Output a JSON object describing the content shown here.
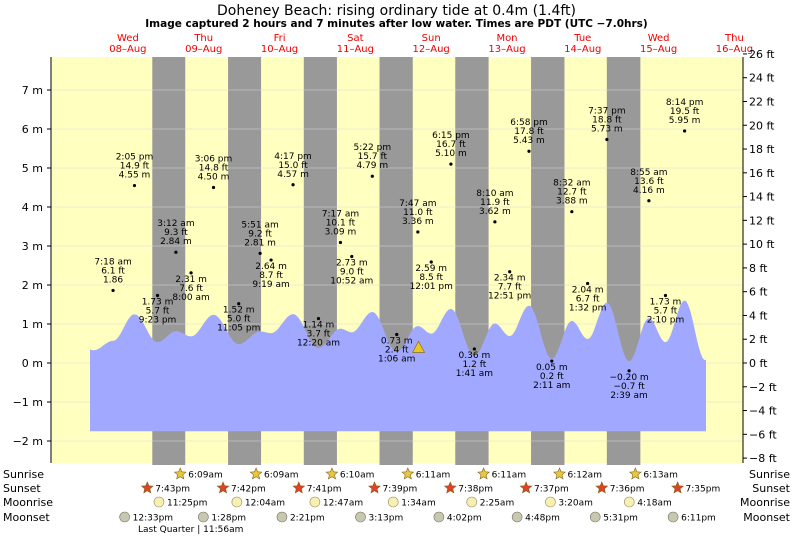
{
  "title": "Doheney Beach: rising  ordinary tide at 0.4m (1.4ft)",
  "subtitle": "Image captured 2 hours and 7 minutes after low water. Times are PDT (UTC −7.0hrs)",
  "colors": {
    "day_bg": "#ffffc0",
    "night_band": "#999999",
    "water": "#a0a8ff",
    "day_label": "#ee0000",
    "grid": "#d8d8d8",
    "current_marker": "#e8c820",
    "sun_star": "#e8c840",
    "sunset_star": "#dd4422",
    "moonrise": "#f8f0b0",
    "moonset": "#c8c8b0"
  },
  "days": [
    {
      "name": "Wed",
      "date": "08–Aug"
    },
    {
      "name": "Thu",
      "date": "09–Aug"
    },
    {
      "name": "Fri",
      "date": "10–Aug"
    },
    {
      "name": "Sat",
      "date": "11–Aug"
    },
    {
      "name": "Sun",
      "date": "12–Aug"
    },
    {
      "name": "Mon",
      "date": "13–Aug"
    },
    {
      "name": "Tue",
      "date": "14–Aug"
    },
    {
      "name": "Wed",
      "date": "15–Aug"
    },
    {
      "name": "Thu",
      "date": "16–Aug"
    }
  ],
  "chart_data": {
    "type": "area",
    "title": "Doheney Beach: rising  ordinary tide at 0.4m (1.4ft)",
    "x_range_hours": [
      -4.7,
      214.3
    ],
    "x_note": "hours after 00:00 Wed 08-Aug (PDT)",
    "series_span_hours": [
      0,
      195.0
    ],
    "ylim_m": [
      -2.3,
      7.8
    ],
    "yticks_m": [
      -2,
      -1,
      0,
      1,
      2,
      3,
      4,
      5,
      6,
      7
    ],
    "ytick_labels_m": [
      "−2 m",
      "−1 m",
      "0 m",
      "1 m",
      "2 m",
      "3 m",
      "4 m",
      "5 m",
      "6 m",
      "7 m"
    ],
    "yticks_ft": [
      -8,
      -6,
      -4,
      -2,
      0,
      2,
      4,
      6,
      8,
      10,
      12,
      14,
      16,
      18,
      20,
      22,
      24,
      26
    ],
    "ytick_labels_ft": [
      "−8 ft",
      "−6 ft",
      "−4 ft",
      "−2 ft",
      "0 ft",
      "2 ft",
      "4 ft",
      "6 ft",
      "8 ft",
      "10 ft",
      "12 ft",
      "14 ft",
      "16 ft",
      "18 ft",
      "20 ft",
      "22 ft",
      "24 ft",
      "26 ft"
    ],
    "current": {
      "hour": 104.0,
      "height_m": 0.4,
      "ft_label": "1.4ft"
    },
    "nights": [
      {
        "start": 19.72,
        "end": 30.15
      },
      {
        "start": 43.7,
        "end": 54.15
      },
      {
        "start": 67.68,
        "end": 78.17
      },
      {
        "start": 91.65,
        "end": 102.18
      },
      {
        "start": 115.63,
        "end": 126.18
      },
      {
        "start": 139.62,
        "end": 150.2
      },
      {
        "start": 163.6,
        "end": 174.22
      }
    ],
    "tides": [
      {
        "hour": 7.3,
        "m": 1.86,
        "time": "7:18 am",
        "ft": "6.1 ft",
        "mtxt": "1.86"
      },
      {
        "hour": 14.08,
        "m": 4.55,
        "time": "2:05 pm",
        "ft": "14.9 ft",
        "mtxt": "4.55 m"
      },
      {
        "hour": 21.38,
        "m": 1.73,
        "time": "9:23 pm",
        "ft": "5.7 ft",
        "mtxt": "1.73 m"
      },
      {
        "hour": 27.2,
        "m": 2.84,
        "time": "3:12 am",
        "ft": "9.3 ft",
        "mtxt": "2.84 m"
      },
      {
        "hour": 32.0,
        "m": 2.31,
        "time": "8:00 am",
        "ft": "7.6 ft",
        "mtxt": "2.31 m"
      },
      {
        "hour": 39.1,
        "m": 4.5,
        "time": "3:06 pm",
        "ft": "14.8 ft",
        "mtxt": "4.50 m"
      },
      {
        "hour": 47.08,
        "m": 1.52,
        "time": "11:05 pm",
        "ft": "5.0 ft",
        "mtxt": "1.52 m"
      },
      {
        "hour": 53.85,
        "m": 2.81,
        "time": "5:51 am",
        "ft": "9.2 ft",
        "mtxt": "2.81 m"
      },
      {
        "hour": 57.32,
        "m": 2.64,
        "time": "9:19 am",
        "ft": "8.7 ft",
        "mtxt": "2.64 m"
      },
      {
        "hour": 64.28,
        "m": 4.57,
        "time": "4:17 pm",
        "ft": "15.0 ft",
        "mtxt": "4.57 m"
      },
      {
        "hour": 72.33,
        "m": 1.14,
        "time": "12:20 am",
        "ft": "3.7 ft",
        "mtxt": "1.14 m"
      },
      {
        "hour": 79.28,
        "m": 3.09,
        "time": "7:17 am",
        "ft": "10.1 ft",
        "mtxt": "3.09 m"
      },
      {
        "hour": 82.87,
        "m": 2.73,
        "time": "10:52 am",
        "ft": "9.0 ft",
        "mtxt": "2.73 m"
      },
      {
        "hour": 89.37,
        "m": 4.79,
        "time": "5:22 pm",
        "ft": "15.7 ft",
        "mtxt": "4.79 m"
      },
      {
        "hour": 97.1,
        "m": 0.73,
        "time": "1:06 am",
        "ft": "2.4 ft",
        "mtxt": "0.73 m"
      },
      {
        "hour": 103.78,
        "m": 3.36,
        "time": "7:47 am",
        "ft": "11.0 ft",
        "mtxt": "3.36 m"
      },
      {
        "hour": 108.02,
        "m": 2.59,
        "time": "12:01 pm",
        "ft": "8.5 ft",
        "mtxt": "2.59 m"
      },
      {
        "hour": 114.25,
        "m": 5.1,
        "time": "6:15 pm",
        "ft": "16.7 ft",
        "mtxt": "5.10 m"
      },
      {
        "hour": 121.68,
        "m": 0.36,
        "time": "1:41 am",
        "ft": "1.2 ft",
        "mtxt": "0.36 m"
      },
      {
        "hour": 128.17,
        "m": 3.62,
        "time": "8:10 am",
        "ft": "11.9 ft",
        "mtxt": "3.62 m"
      },
      {
        "hour": 132.85,
        "m": 2.34,
        "time": "12:51 pm",
        "ft": "7.7 ft",
        "mtxt": "2.34 m"
      },
      {
        "hour": 138.97,
        "m": 5.43,
        "time": "6:58 pm",
        "ft": "17.8 ft",
        "mtxt": "5.43 m"
      },
      {
        "hour": 146.18,
        "m": 0.05,
        "time": "2:11 am",
        "ft": "0.2 ft",
        "mtxt": "0.05 m"
      },
      {
        "hour": 152.53,
        "m": 3.88,
        "time": "8:32 am",
        "ft": "12.7 ft",
        "mtxt": "3.88 m"
      },
      {
        "hour": 157.53,
        "m": 2.04,
        "time": "1:32 pm",
        "ft": "6.7 ft",
        "mtxt": "2.04 m"
      },
      {
        "hour": 163.62,
        "m": 5.73,
        "time": "7:37 pm",
        "ft": "18.8 ft",
        "mtxt": "5.73 m"
      },
      {
        "hour": 170.65,
        "m": -0.2,
        "time": "2:39 am",
        "ft": "−0.7 ft",
        "mtxt": "−0.20 m"
      },
      {
        "hour": 176.92,
        "m": 4.16,
        "time": "8:55 am",
        "ft": "13.6 ft",
        "mtxt": "4.16 m"
      },
      {
        "hour": 182.17,
        "m": 1.73,
        "time": "2:10 pm",
        "ft": "5.7 ft",
        "mtxt": "1.73 m"
      },
      {
        "hour": 188.23,
        "m": 5.95,
        "time": "8:14 pm",
        "ft": "19.5 ft",
        "mtxt": "5.95 m"
      }
    ]
  },
  "rows": {
    "sunrise": {
      "label": "Sunrise",
      "events": [
        {
          "hour": 30.15,
          "time": "6:09am"
        },
        {
          "hour": 54.15,
          "time": "6:09am"
        },
        {
          "hour": 78.17,
          "time": "6:10am"
        },
        {
          "hour": 102.18,
          "time": "6:11am"
        },
        {
          "hour": 126.18,
          "time": "6:11am"
        },
        {
          "hour": 150.2,
          "time": "6:12am"
        },
        {
          "hour": 174.22,
          "time": "6:13am"
        }
      ]
    },
    "sunset": {
      "label": "Sunset",
      "events": [
        {
          "hour": 19.72,
          "time": "7:43pm"
        },
        {
          "hour": 43.7,
          "time": "7:42pm"
        },
        {
          "hour": 67.68,
          "time": "7:41pm"
        },
        {
          "hour": 91.65,
          "time": "7:39pm"
        },
        {
          "hour": 115.63,
          "time": "7:38pm"
        },
        {
          "hour": 139.62,
          "time": "7:37pm"
        },
        {
          "hour": 163.6,
          "time": "7:36pm"
        },
        {
          "hour": 187.58,
          "time": "7:35pm"
        }
      ]
    },
    "moonrise": {
      "label": "Moonrise",
      "events": [
        {
          "hour": 23.42,
          "time": "11:25pm"
        },
        {
          "hour": 48.07,
          "time": "12:04am"
        },
        {
          "hour": 72.78,
          "time": "12:47am"
        },
        {
          "hour": 97.57,
          "time": "1:34am"
        },
        {
          "hour": 122.42,
          "time": "2:25am"
        },
        {
          "hour": 147.33,
          "time": "3:20am"
        },
        {
          "hour": 172.3,
          "time": "4:18am"
        }
      ]
    },
    "moonset": {
      "label": "Moonset",
      "events": [
        {
          "hour": 12.55,
          "time": "12:33pm"
        },
        {
          "hour": 37.47,
          "time": "1:28pm"
        },
        {
          "hour": 62.35,
          "time": "2:21pm"
        },
        {
          "hour": 87.22,
          "time": "3:13pm"
        },
        {
          "hour": 112.03,
          "time": "4:02pm"
        },
        {
          "hour": 136.8,
          "time": "4:48pm"
        },
        {
          "hour": 161.52,
          "time": "5:31pm"
        },
        {
          "hour": 186.18,
          "time": "6:11pm"
        }
      ]
    }
  },
  "moon_phase_note": "Last Quarter | 11:56am"
}
